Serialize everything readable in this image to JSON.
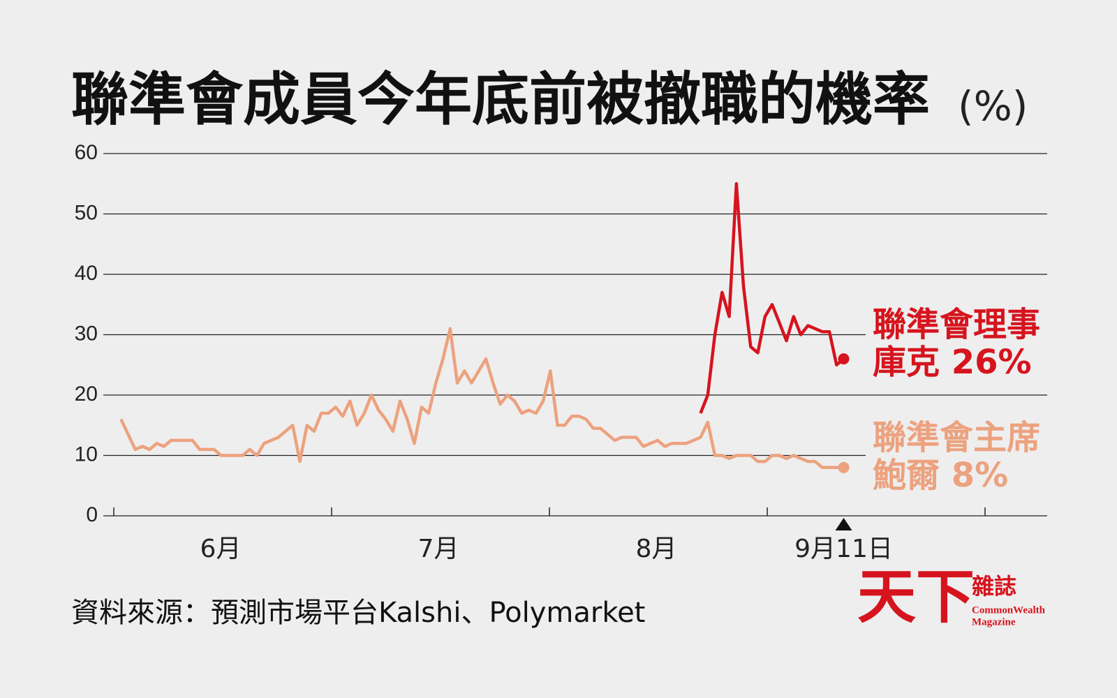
{
  "chart_data": {
    "type": "line",
    "title": "聯準會成員今年底前被撤職的機率",
    "unit": "(%)",
    "source": "資料來源：預測市場平台Kalshi、Polymarket",
    "x_labels": [
      "6月",
      "7月",
      "8月"
    ],
    "x_marker_label": "9月11日",
    "series": [
      {
        "name": "聯準會理事",
        "end_label": "庫克 26%",
        "color": "#d6141e",
        "values": [
          null,
          null,
          null,
          null,
          null,
          null,
          null,
          null,
          null,
          null,
          null,
          null,
          null,
          null,
          null,
          null,
          null,
          null,
          null,
          null,
          null,
          null,
          null,
          null,
          null,
          null,
          null,
          null,
          null,
          null,
          null,
          null,
          null,
          null,
          null,
          null,
          null,
          null,
          null,
          null,
          null,
          null,
          null,
          null,
          null,
          null,
          null,
          null,
          null,
          null,
          null,
          null,
          null,
          null,
          null,
          null,
          null,
          null,
          null,
          null,
          null,
          null,
          null,
          null,
          null,
          null,
          null,
          null,
          null,
          null,
          null,
          null,
          null,
          null,
          null,
          null,
          null,
          null,
          null,
          null,
          null,
          17,
          20,
          30,
          37,
          33,
          55,
          38,
          28,
          27,
          33,
          35,
          32,
          29,
          33,
          30,
          31.5,
          31,
          30.5,
          30.5,
          25,
          26
        ]
      },
      {
        "name": "聯準會主席",
        "end_label": "鮑爾 8%",
        "color": "#eca27f",
        "values": [
          16,
          13.5,
          11,
          11.5,
          11,
          12,
          11.5,
          12.5,
          12.5,
          12.5,
          12.5,
          11,
          11,
          11,
          10,
          10,
          10,
          10,
          11,
          10,
          12,
          12.5,
          13,
          14,
          15,
          9,
          15,
          14,
          17,
          17,
          18,
          16.5,
          19,
          15,
          17,
          20,
          17.5,
          16,
          14,
          19,
          16,
          12,
          18,
          17,
          22,
          26,
          31,
          22,
          24,
          22,
          24,
          26,
          22,
          18.5,
          20,
          19,
          17,
          17.5,
          17,
          19,
          24,
          15,
          15,
          16.5,
          16.5,
          16,
          14.5,
          14.5,
          13.5,
          12.5,
          13,
          13,
          13,
          11.5,
          12,
          12.5,
          11.5,
          12,
          12,
          12,
          12.5,
          13,
          15.5,
          10,
          10,
          9.5,
          10,
          10,
          10,
          9,
          9,
          10,
          10,
          9.5,
          10,
          9.5,
          9,
          9,
          8,
          8,
          8,
          8
        ]
      }
    ],
    "ylim": [
      0,
      60
    ],
    "yticks": [
      0,
      10,
      20,
      30,
      40,
      50,
      60
    ],
    "grid": true
  },
  "logo": {
    "mark": "天下",
    "name": "雜誌",
    "english": [
      "CommonWealth",
      "Magazine"
    ]
  }
}
